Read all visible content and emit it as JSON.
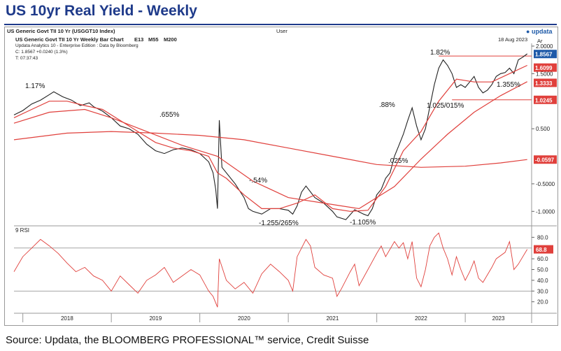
{
  "page": {
    "title": "US 10yr Real Yield - Weekly",
    "source": "Source: Updata, the BLOOMBERG PROFESSIONAL™ service, Credit Suisse"
  },
  "header": {
    "security": "US Generic Govt TII 10 Yr (USGGT10 Index)",
    "user": "User",
    "logo": "updata",
    "chart_name": "US Generic Govt TII 10 Yr Weekly Bar Chart",
    "ma_labels": [
      "E13",
      "M55",
      "M200"
    ],
    "date": "18 Aug 2023",
    "edition": "Updata Analytics 10 - Enterprise Edition : Data by Bloomberg",
    "close": "C: 1.8567  +0.0240 (1.3%)",
    "time": "T: 07:37:43",
    "axis_unit": "Ar"
  },
  "chart_data": [
    {
      "type": "line",
      "ylim": [
        -1.25,
        2.05
      ],
      "yticks": [
        "2.0000",
        "1.5000",
        "0.500",
        "-0.5000",
        "-1.0000"
      ],
      "ytick_values": [
        2.0,
        1.5,
        0.5,
        -0.5,
        -1.0
      ],
      "xlabels": [
        "2018",
        "2019",
        "2020",
        "2021",
        "2022",
        "2023"
      ],
      "x_start": 2017.9,
      "x_end": 2023.75,
      "series": [
        {
          "color": "#222222",
          "points": [
            [
              2017.9,
              0.75
            ],
            [
              2018.0,
              0.83
            ],
            [
              2018.1,
              0.95
            ],
            [
              2018.2,
              1.02
            ],
            [
              2018.3,
              1.12
            ],
            [
              2018.35,
              1.17
            ],
            [
              2018.45,
              1.08
            ],
            [
              2018.55,
              1.02
            ],
            [
              2018.65,
              0.92
            ],
            [
              2018.75,
              0.97
            ],
            [
              2018.8,
              0.9
            ],
            [
              2018.9,
              0.82
            ],
            [
              2019.0,
              0.7
            ],
            [
              2019.1,
              0.55
            ],
            [
              2019.2,
              0.5
            ],
            [
              2019.3,
              0.4
            ],
            [
              2019.4,
              0.22
            ],
            [
              2019.5,
              0.1
            ],
            [
              2019.6,
              0.05
            ],
            [
              2019.7,
              0.12
            ],
            [
              2019.8,
              0.15
            ],
            [
              2019.9,
              0.12
            ],
            [
              2020.0,
              0.05
            ],
            [
              2020.1,
              -0.1
            ],
            [
              2020.15,
              -0.3
            ],
            [
              2020.18,
              -0.6
            ],
            [
              2020.2,
              -0.95
            ],
            [
              2020.22,
              0.655
            ],
            [
              2020.25,
              -0.2
            ],
            [
              2020.3,
              -0.3
            ],
            [
              2020.4,
              -0.5
            ],
            [
              2020.5,
              -0.75
            ],
            [
              2020.55,
              -0.95
            ],
            [
              2020.6,
              -1.0
            ],
            [
              2020.7,
              -1.05
            ],
            [
              2020.8,
              -0.95
            ],
            [
              2020.9,
              -0.95
            ],
            [
              2021.0,
              -0.98
            ],
            [
              2021.05,
              -1.05
            ],
            [
              2021.1,
              -0.9
            ],
            [
              2021.15,
              -0.65
            ],
            [
              2021.2,
              -0.54
            ],
            [
              2021.3,
              -0.75
            ],
            [
              2021.4,
              -0.85
            ],
            [
              2021.5,
              -1.0
            ],
            [
              2021.55,
              -1.1
            ],
            [
              2021.65,
              -1.15
            ],
            [
              2021.75,
              -0.97
            ],
            [
              2021.85,
              -1.05
            ],
            [
              2021.9,
              -1.08
            ],
            [
              2021.95,
              -0.95
            ],
            [
              2022.0,
              -0.7
            ],
            [
              2022.05,
              -0.6
            ],
            [
              2022.1,
              -0.4
            ],
            [
              2022.15,
              -0.3
            ],
            [
              2022.2,
              0.0
            ],
            [
              2022.25,
              0.2
            ],
            [
              2022.3,
              0.4
            ],
            [
              2022.35,
              0.65
            ],
            [
              2022.4,
              0.88
            ],
            [
              2022.45,
              0.55
            ],
            [
              2022.5,
              0.3
            ],
            [
              2022.55,
              0.5
            ],
            [
              2022.6,
              0.9
            ],
            [
              2022.65,
              1.3
            ],
            [
              2022.7,
              1.6
            ],
            [
              2022.75,
              1.75
            ],
            [
              2022.8,
              1.65
            ],
            [
              2022.85,
              1.5
            ],
            [
              2022.9,
              1.25
            ],
            [
              2022.95,
              1.3
            ],
            [
              2023.0,
              1.25
            ],
            [
              2023.05,
              1.35
            ],
            [
              2023.1,
              1.45
            ],
            [
              2023.15,
              1.25
            ],
            [
              2023.2,
              1.15
            ],
            [
              2023.25,
              1.2
            ],
            [
              2023.3,
              1.3
            ],
            [
              2023.35,
              1.45
            ],
            [
              2023.4,
              1.5
            ],
            [
              2023.45,
              1.52
            ],
            [
              2023.5,
              1.6
            ],
            [
              2023.55,
              1.5
            ],
            [
              2023.6,
              1.75
            ],
            [
              2023.65,
              1.8
            ],
            [
              2023.7,
              1.86
            ]
          ]
        },
        {
          "color": "#e0403c",
          "points": [
            [
              2017.9,
              0.7
            ],
            [
              2018.1,
              0.85
            ],
            [
              2018.3,
              1.0
            ],
            [
              2018.5,
              1.0
            ],
            [
              2018.7,
              0.92
            ],
            [
              2018.9,
              0.85
            ],
            [
              2019.1,
              0.65
            ],
            [
              2019.3,
              0.45
            ],
            [
              2019.5,
              0.25
            ],
            [
              2019.7,
              0.15
            ],
            [
              2019.9,
              0.1
            ],
            [
              2020.1,
              0.0
            ],
            [
              2020.2,
              -0.3
            ],
            [
              2020.3,
              -0.4
            ],
            [
              2020.5,
              -0.7
            ],
            [
              2020.7,
              -0.95
            ],
            [
              2020.9,
              -0.95
            ],
            [
              2021.1,
              -0.85
            ],
            [
              2021.3,
              -0.7
            ],
            [
              2021.5,
              -0.95
            ],
            [
              2021.7,
              -1.0
            ],
            [
              2021.9,
              -0.98
            ],
            [
              2022.1,
              -0.55
            ],
            [
              2022.3,
              0.1
            ],
            [
              2022.5,
              0.45
            ],
            [
              2022.7,
              1.0
            ],
            [
              2022.9,
              1.4
            ],
            [
              2023.1,
              1.35
            ],
            [
              2023.3,
              1.35
            ],
            [
              2023.5,
              1.5
            ],
            [
              2023.7,
              1.65
            ]
          ]
        },
        {
          "color": "#e0403c",
          "points": [
            [
              2017.9,
              0.6
            ],
            [
              2018.3,
              0.8
            ],
            [
              2018.7,
              0.85
            ],
            [
              2019.0,
              0.7
            ],
            [
              2019.4,
              0.45
            ],
            [
              2019.8,
              0.2
            ],
            [
              2020.2,
              0.0
            ],
            [
              2020.6,
              -0.45
            ],
            [
              2021.0,
              -0.75
            ],
            [
              2021.4,
              -0.85
            ],
            [
              2021.8,
              -0.95
            ],
            [
              2022.2,
              -0.55
            ],
            [
              2022.5,
              -0.05
            ],
            [
              2022.8,
              0.4
            ],
            [
              2023.1,
              0.8
            ],
            [
              2023.4,
              1.1
            ],
            [
              2023.7,
              1.355
            ]
          ]
        },
        {
          "color": "#e0403c",
          "points": [
            [
              2017.9,
              0.3
            ],
            [
              2018.5,
              0.42
            ],
            [
              2019.0,
              0.45
            ],
            [
              2019.5,
              0.42
            ],
            [
              2020.0,
              0.38
            ],
            [
              2020.5,
              0.3
            ],
            [
              2021.0,
              0.15
            ],
            [
              2021.5,
              0.0
            ],
            [
              2022.0,
              -0.15
            ],
            [
              2022.5,
              -0.2
            ],
            [
              2023.0,
              -0.18
            ],
            [
              2023.4,
              -0.12
            ],
            [
              2023.7,
              -0.06
            ]
          ]
        }
      ],
      "hlines": [
        {
          "value": 1.82,
          "color": "#e0403c"
        },
        {
          "value": 1.0245,
          "color": "#e0403c"
        }
      ],
      "annotations": [
        "1.17%",
        ".655%",
        "-.54%",
        "-1.255/265%",
        "-1.105%",
        ".88%",
        ".025%",
        "1.82%",
        "1.025/015%",
        "1.355%"
      ],
      "value_tags": [
        {
          "label": "1.8567",
          "value": 1.8567,
          "color": "#1e5aa8"
        },
        {
          "label": "1.6099",
          "value": 1.6099,
          "color": "#e0403c"
        },
        {
          "label": "1.3333",
          "value": 1.3333,
          "color": "#e0403c"
        },
        {
          "label": "1.0245",
          "value": 1.0245,
          "color": "#e0403c"
        },
        {
          "label": "-0.0597",
          "value": -0.0597,
          "color": "#e0403c"
        }
      ]
    },
    {
      "type": "line",
      "title": "9 RSI",
      "ylim": [
        10,
        90
      ],
      "yticks": [
        "80.0",
        "60.0",
        "50.0",
        "40.0",
        "30.0",
        "20.0"
      ],
      "ytick_values": [
        80,
        60,
        50,
        40,
        30,
        20
      ],
      "hlines": [
        70,
        30
      ],
      "value_tag": {
        "label": "68.8",
        "value": 68.8
      },
      "series": [
        {
          "color": "#e0403c",
          "points": [
            [
              2017.9,
              48
            ],
            [
              2018.0,
              62
            ],
            [
              2018.1,
              70
            ],
            [
              2018.2,
              78
            ],
            [
              2018.3,
              72
            ],
            [
              2018.4,
              65
            ],
            [
              2018.5,
              56
            ],
            [
              2018.6,
              48
            ],
            [
              2018.7,
              52
            ],
            [
              2018.8,
              44
            ],
            [
              2018.9,
              40
            ],
            [
              2019.0,
              30
            ],
            [
              2019.1,
              44
            ],
            [
              2019.2,
              36
            ],
            [
              2019.3,
              28
            ],
            [
              2019.4,
              40
            ],
            [
              2019.5,
              45
            ],
            [
              2019.6,
              52
            ],
            [
              2019.7,
              38
            ],
            [
              2019.8,
              44
            ],
            [
              2019.9,
              50
            ],
            [
              2020.0,
              45
            ],
            [
              2020.1,
              30
            ],
            [
              2020.15,
              25
            ],
            [
              2020.2,
              15
            ],
            [
              2020.22,
              60
            ],
            [
              2020.3,
              40
            ],
            [
              2020.4,
              32
            ],
            [
              2020.5,
              38
            ],
            [
              2020.6,
              28
            ],
            [
              2020.7,
              46
            ],
            [
              2020.8,
              55
            ],
            [
              2020.9,
              48
            ],
            [
              2021.0,
              40
            ],
            [
              2021.05,
              30
            ],
            [
              2021.1,
              62
            ],
            [
              2021.2,
              78
            ],
            [
              2021.25,
              72
            ],
            [
              2021.3,
              52
            ],
            [
              2021.4,
              45
            ],
            [
              2021.5,
              42
            ],
            [
              2021.55,
              25
            ],
            [
              2021.6,
              32
            ],
            [
              2021.7,
              48
            ],
            [
              2021.75,
              55
            ],
            [
              2021.8,
              35
            ],
            [
              2021.9,
              50
            ],
            [
              2022.0,
              65
            ],
            [
              2022.05,
              72
            ],
            [
              2022.1,
              62
            ],
            [
              2022.2,
              76
            ],
            [
              2022.25,
              70
            ],
            [
              2022.3,
              75
            ],
            [
              2022.35,
              60
            ],
            [
              2022.4,
              76
            ],
            [
              2022.45,
              42
            ],
            [
              2022.5,
              34
            ],
            [
              2022.55,
              50
            ],
            [
              2022.6,
              72
            ],
            [
              2022.65,
              80
            ],
            [
              2022.7,
              84
            ],
            [
              2022.75,
              70
            ],
            [
              2022.8,
              60
            ],
            [
              2022.85,
              45
            ],
            [
              2022.9,
              62
            ],
            [
              2022.95,
              50
            ],
            [
              2023.0,
              40
            ],
            [
              2023.05,
              48
            ],
            [
              2023.1,
              58
            ],
            [
              2023.15,
              42
            ],
            [
              2023.2,
              38
            ],
            [
              2023.3,
              52
            ],
            [
              2023.35,
              60
            ],
            [
              2023.45,
              66
            ],
            [
              2023.5,
              76
            ],
            [
              2023.55,
              50
            ],
            [
              2023.6,
              55
            ],
            [
              2023.7,
              68.8
            ]
          ]
        }
      ]
    }
  ]
}
